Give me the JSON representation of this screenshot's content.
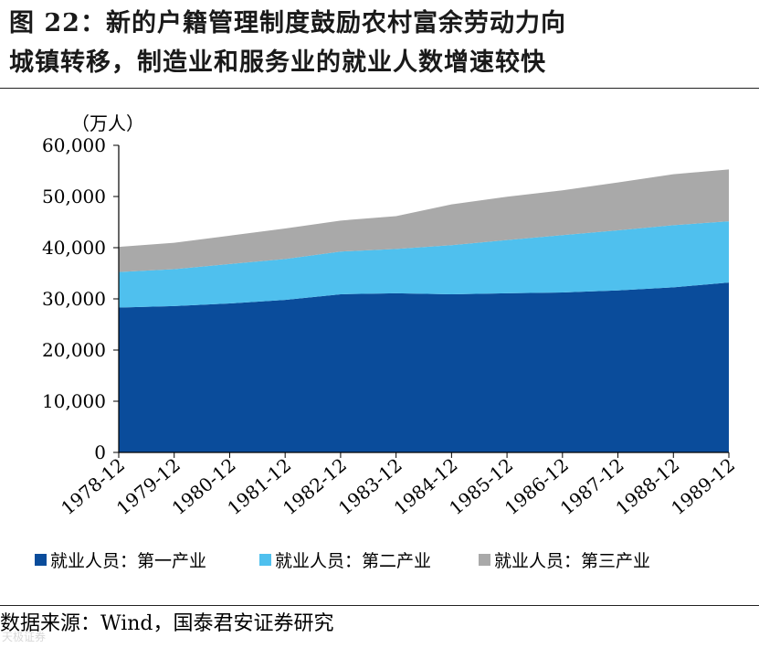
{
  "title": {
    "prefix": "图 22：",
    "line1": "新的户籍管理制度鼓励农村富余劳动力向",
    "line2": "城镇转移，制造业和服务业的就业人数增速较快"
  },
  "source": "数据来源：Wind，国泰君安证券研究",
  "watermark": "天极证券",
  "chart_data": {
    "type": "area",
    "stacked": true,
    "unit_label": "（万人）",
    "categories": [
      "1978-12",
      "1979-12",
      "1980-12",
      "1981-12",
      "1982-12",
      "1983-12",
      "1984-12",
      "1985-12",
      "1986-12",
      "1987-12",
      "1988-12",
      "1989-12"
    ],
    "ylim": [
      0,
      60000
    ],
    "yticks": [
      0,
      10000,
      20000,
      30000,
      40000,
      50000,
      60000
    ],
    "ytick_labels": [
      "0",
      "10,000",
      "20,000",
      "30,000",
      "40,000",
      "50,000",
      "60,000"
    ],
    "series": [
      {
        "name": "就业人员：第一产业",
        "color": "#0a4c9b",
        "values": [
          28300,
          28600,
          29100,
          29800,
          30900,
          31100,
          30900,
          31100,
          31250,
          31650,
          32250,
          33200
        ]
      },
      {
        "name": "就业人员：第二产业",
        "color": "#4fc0ee",
        "values": [
          6950,
          7200,
          7700,
          8000,
          8350,
          8650,
          9600,
          10400,
          11200,
          11750,
          12150,
          11950
        ]
      },
      {
        "name": "就业人员：第三产业",
        "color": "#a9a9a9",
        "values": [
          4900,
          5150,
          5550,
          5950,
          6050,
          6400,
          7950,
          8450,
          8750,
          9350,
          9950,
          10150
        ]
      }
    ],
    "legend_position": "bottom"
  }
}
